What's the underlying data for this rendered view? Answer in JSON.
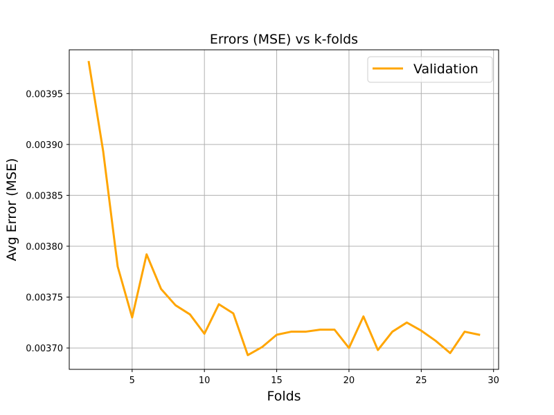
{
  "chart_data": {
    "type": "line",
    "title": "Errors (MSE) vs k-folds",
    "xlabel": "Folds",
    "ylabel": "Avg Error (MSE)",
    "xlim": [
      0.65,
      30.35
    ],
    "ylim": [
      0.003679,
      0.003993
    ],
    "xticks": [
      5,
      10,
      15,
      20,
      25,
      30
    ],
    "yticks": [
      0.0037,
      0.00375,
      0.0038,
      0.00385,
      0.0039,
      0.00395
    ],
    "ytick_labels": [
      "0.00370",
      "0.00375",
      "0.00380",
      "0.00385",
      "0.00390",
      "0.00395"
    ],
    "grid": true,
    "legend_position": "top-right",
    "series": [
      {
        "name": "Validation",
        "color": "#FFA500",
        "x": [
          2,
          3,
          4,
          5,
          6,
          7,
          8,
          9,
          10,
          11,
          12,
          13,
          14,
          15,
          16,
          17,
          18,
          19,
          20,
          21,
          22,
          23,
          24,
          25,
          26,
          27,
          28,
          29
        ],
        "y": [
          0.003981,
          0.003893,
          0.00378,
          0.00373,
          0.003792,
          0.003758,
          0.003742,
          0.003733,
          0.003714,
          0.003743,
          0.003734,
          0.003693,
          0.003701,
          0.003713,
          0.003716,
          0.003716,
          0.003718,
          0.003718,
          0.0037,
          0.003731,
          0.003698,
          0.003716,
          0.003725,
          0.003717,
          0.003707,
          0.003695,
          0.003716,
          0.003713
        ]
      }
    ]
  }
}
